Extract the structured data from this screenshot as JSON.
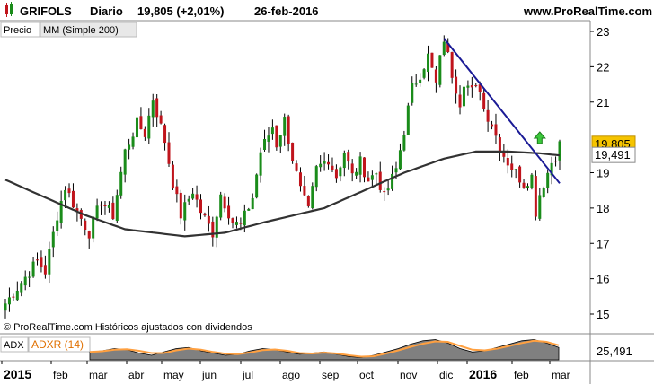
{
  "header": {
    "symbol": "GRIFOLS",
    "period": "Diario",
    "price_change": "19,805 (+2,01%)",
    "date": "26-feb-2016",
    "site": "www.ProRealTime.com"
  },
  "price_panel": {
    "legend_price": "Precio",
    "legend_ma": "MM (Simple 200)",
    "footer": "© ProRealTime.com Históricos ajustados con dividendos"
  },
  "adx_panel": {
    "label_adx": "ADX",
    "label_adxr": "ADXR (14)",
    "value": "25,491",
    "adx_color": "#808080",
    "adxr_color": "#ffa040"
  },
  "chart_data": [
    {
      "type": "candlestick",
      "y_ticks": [
        "23",
        "22",
        "21",
        "19",
        "18",
        "17",
        "16",
        "15"
      ],
      "ylim": [
        14.7,
        23.3
      ],
      "last_price_label": "19,805",
      "ma_price_label": "19,491",
      "x_labels": [
        "2015",
        "feb",
        "mar",
        "abr",
        "may",
        "jun",
        "jul",
        "ago",
        "sep",
        "oct",
        "nov",
        "dic",
        "2016",
        "feb",
        "mar"
      ],
      "anchors": [
        [
          0,
          15.3
        ],
        [
          4,
          15.9
        ],
        [
          8,
          16.5
        ],
        [
          10,
          16.2
        ],
        [
          13,
          17.8
        ],
        [
          15,
          18.6
        ],
        [
          18,
          17.9
        ],
        [
          21,
          17.3
        ],
        [
          24,
          18.2
        ],
        [
          27,
          17.8
        ],
        [
          30,
          19.6
        ],
        [
          33,
          20.4
        ],
        [
          35,
          20.1
        ],
        [
          37,
          21.1
        ],
        [
          40,
          19.9
        ],
        [
          42,
          18.7
        ],
        [
          44,
          17.8
        ],
        [
          47,
          18.5
        ],
        [
          49,
          17.9
        ],
        [
          52,
          17.3
        ],
        [
          54,
          18.4
        ],
        [
          57,
          17.6
        ],
        [
          59,
          17.5
        ],
        [
          62,
          18.3
        ],
        [
          64,
          19.6
        ],
        [
          67,
          20.3
        ],
        [
          68,
          19.8
        ],
        [
          70,
          20.5
        ],
        [
          72,
          19.4
        ],
        [
          74,
          18.5
        ],
        [
          76,
          17.9
        ],
        [
          78,
          19.1
        ],
        [
          81,
          19.4
        ],
        [
          83,
          18.9
        ],
        [
          85,
          19.6
        ],
        [
          87,
          18.9
        ],
        [
          89,
          19.3
        ],
        [
          91,
          18.8
        ],
        [
          93,
          19.0
        ],
        [
          95,
          18.3
        ],
        [
          98,
          19.1
        ],
        [
          100,
          20.2
        ],
        [
          102,
          21.4
        ],
        [
          104,
          21.8
        ],
        [
          106,
          22.3
        ],
        [
          108,
          21.5
        ],
        [
          109,
          22.2
        ],
        [
          110,
          22.8
        ],
        [
          112,
          21.8
        ],
        [
          114,
          21.0
        ],
        [
          115,
          21.6
        ],
        [
          117,
          21.3
        ],
        [
          119,
          21.4
        ],
        [
          120,
          20.8
        ],
        [
          122,
          20.4
        ],
        [
          124,
          19.7
        ],
        [
          126,
          19.3
        ],
        [
          128,
          19.0
        ],
        [
          130,
          18.7
        ],
        [
          132,
          18.9
        ],
        [
          133,
          17.9
        ],
        [
          134,
          18.4
        ],
        [
          136,
          19.0
        ],
        [
          137,
          19.3
        ],
        [
          138,
          19.5
        ],
        [
          139,
          19.8
        ]
      ],
      "ma_anchors": [
        [
          0,
          18.8
        ],
        [
          10,
          18.3
        ],
        [
          20,
          17.8
        ],
        [
          30,
          17.4
        ],
        [
          45,
          17.2
        ],
        [
          55,
          17.3
        ],
        [
          65,
          17.6
        ],
        [
          80,
          18.0
        ],
        [
          90,
          18.5
        ],
        [
          100,
          19.0
        ],
        [
          110,
          19.4
        ],
        [
          118,
          19.6
        ],
        [
          126,
          19.6
        ],
        [
          134,
          19.55
        ],
        [
          139,
          19.49
        ]
      ],
      "trendline": [
        [
          110,
          22.8
        ],
        [
          139,
          18.7
        ]
      ],
      "signal_arrow": {
        "bar": 134,
        "price": 19.8,
        "color": "#3cc83c"
      },
      "colors": {
        "up": "#1a8c1a",
        "down": "#c0141c",
        "ma": "#323232",
        "trendline": "#1a1a96"
      }
    },
    {
      "type": "area",
      "series": [
        {
          "name": "ADX",
          "values": [
            0.35,
            0.4,
            0.5,
            0.45,
            0.3,
            0.2,
            0.35,
            0.5,
            0.55,
            0.4,
            0.3,
            0.2,
            0.25,
            0.4,
            0.5,
            0.45,
            0.35,
            0.25,
            0.3,
            0.35,
            0.25,
            0.15,
            0.1,
            0.2,
            0.35,
            0.5,
            0.7,
            0.85,
            0.9,
            0.75,
            0.5,
            0.35,
            0.4,
            0.55,
            0.7,
            0.85,
            0.9,
            0.75,
            0.55
          ]
        },
        {
          "name": "ADXR (14)",
          "values": [
            0.35,
            0.38,
            0.45,
            0.47,
            0.4,
            0.3,
            0.3,
            0.42,
            0.5,
            0.45,
            0.35,
            0.27,
            0.25,
            0.33,
            0.43,
            0.46,
            0.4,
            0.3,
            0.28,
            0.32,
            0.28,
            0.2,
            0.14,
            0.16,
            0.28,
            0.42,
            0.58,
            0.72,
            0.82,
            0.8,
            0.62,
            0.45,
            0.42,
            0.5,
            0.62,
            0.75,
            0.85,
            0.8,
            0.65
          ]
        }
      ]
    }
  ]
}
